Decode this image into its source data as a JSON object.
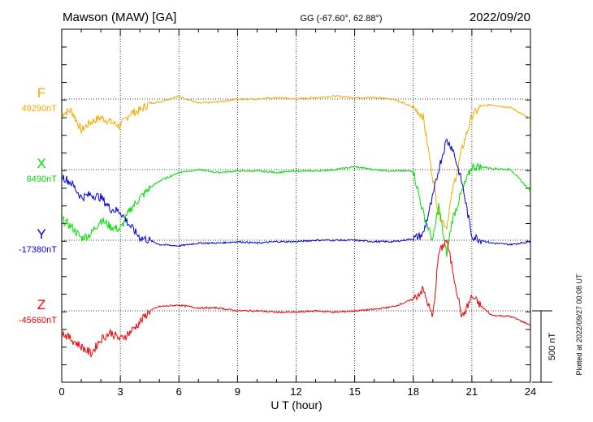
{
  "header": {
    "station": "Mawson (MAW)  [GA]",
    "coords": "GG (-67.60°,  62.88°)",
    "date": "2022/09/20"
  },
  "footer": {
    "plotted": "Plotted at 2022/09/27 00:08 UT",
    "scale_label": "500 nT"
  },
  "chart_data": {
    "type": "line",
    "xlabel": "U T (hour)",
    "xlim": [
      0,
      24
    ],
    "xticks": [
      "0",
      "3",
      "6",
      "9",
      "12",
      "15",
      "18",
      "21",
      "24"
    ],
    "grid": true,
    "series": [
      {
        "name": "F",
        "baseline": "49290nT",
        "color": "#f5a800",
        "x": [
          0,
          0.5,
          1,
          1.5,
          2,
          2.5,
          3,
          3.5,
          4,
          4.5,
          5,
          6,
          7,
          8,
          9,
          10,
          11,
          12,
          13,
          14,
          15,
          16,
          17,
          18,
          18.5,
          19,
          19.3,
          19.7,
          20,
          20.5,
          21,
          21.5,
          22,
          23,
          24
        ],
        "y": [
          -100,
          -80,
          -220,
          -160,
          -130,
          -160,
          -190,
          -100,
          -80,
          -30,
          -20,
          20,
          -30,
          -20,
          0,
          0,
          10,
          0,
          10,
          20,
          10,
          10,
          0,
          -60,
          -120,
          -550,
          -800,
          -900,
          -650,
          -350,
          -120,
          -50,
          -40,
          -60,
          -140
        ]
      },
      {
        "name": "X",
        "baseline": "6490nT",
        "color": "#00dd00",
        "x": [
          0,
          0.5,
          1,
          1.5,
          2,
          2.5,
          3,
          3.5,
          4,
          4.5,
          5,
          6,
          7,
          8,
          9,
          10,
          11,
          12,
          13,
          14,
          15,
          16,
          17,
          18,
          18.5,
          19,
          19.3,
          19.7,
          20,
          20.5,
          21,
          21.5,
          22,
          23,
          24
        ],
        "y": [
          -350,
          -400,
          -480,
          -450,
          -350,
          -400,
          -420,
          -280,
          -200,
          -130,
          -80,
          -20,
          0,
          -20,
          -10,
          -10,
          -20,
          -10,
          -10,
          0,
          20,
          0,
          -10,
          -10,
          -300,
          -500,
          -250,
          -600,
          -350,
          -150,
          20,
          20,
          10,
          0,
          -150
        ]
      },
      {
        "name": "Y",
        "baseline": "-17380nT",
        "color": "#0000dd",
        "x": [
          0,
          0.5,
          1,
          1.5,
          2,
          2.5,
          3,
          3.5,
          4,
          4.5,
          5,
          6,
          7,
          8,
          9,
          10,
          11,
          12,
          13,
          14,
          15,
          16,
          17,
          18,
          18.5,
          19,
          19.3,
          19.7,
          20,
          20.5,
          21,
          21.5,
          22,
          23,
          24
        ],
        "y": [
          450,
          400,
          300,
          320,
          300,
          220,
          200,
          100,
          20,
          0,
          -30,
          -40,
          -20,
          -20,
          -10,
          -20,
          -10,
          -10,
          0,
          0,
          0,
          -10,
          -10,
          10,
          40,
          300,
          500,
          700,
          650,
          400,
          30,
          0,
          -20,
          -30,
          -10
        ]
      },
      {
        "name": "Z",
        "baseline": "-45660nT",
        "color": "#ee0000",
        "x": [
          0,
          0.5,
          1,
          1.5,
          2,
          2.5,
          3,
          3.5,
          4,
          4.5,
          5,
          6,
          7,
          8,
          9,
          10,
          11,
          12,
          13,
          14,
          15,
          16,
          17,
          18,
          18.5,
          19,
          19.3,
          19.7,
          20,
          20.5,
          21,
          21.5,
          22,
          23,
          24
        ],
        "y": [
          -150,
          -200,
          -250,
          -300,
          -200,
          -150,
          -200,
          -150,
          -80,
          0,
          30,
          40,
          20,
          20,
          0,
          0,
          -10,
          -10,
          0,
          -10,
          0,
          10,
          30,
          80,
          150,
          -50,
          400,
          500,
          300,
          -50,
          100,
          30,
          -30,
          -40,
          -100
        ]
      }
    ]
  }
}
